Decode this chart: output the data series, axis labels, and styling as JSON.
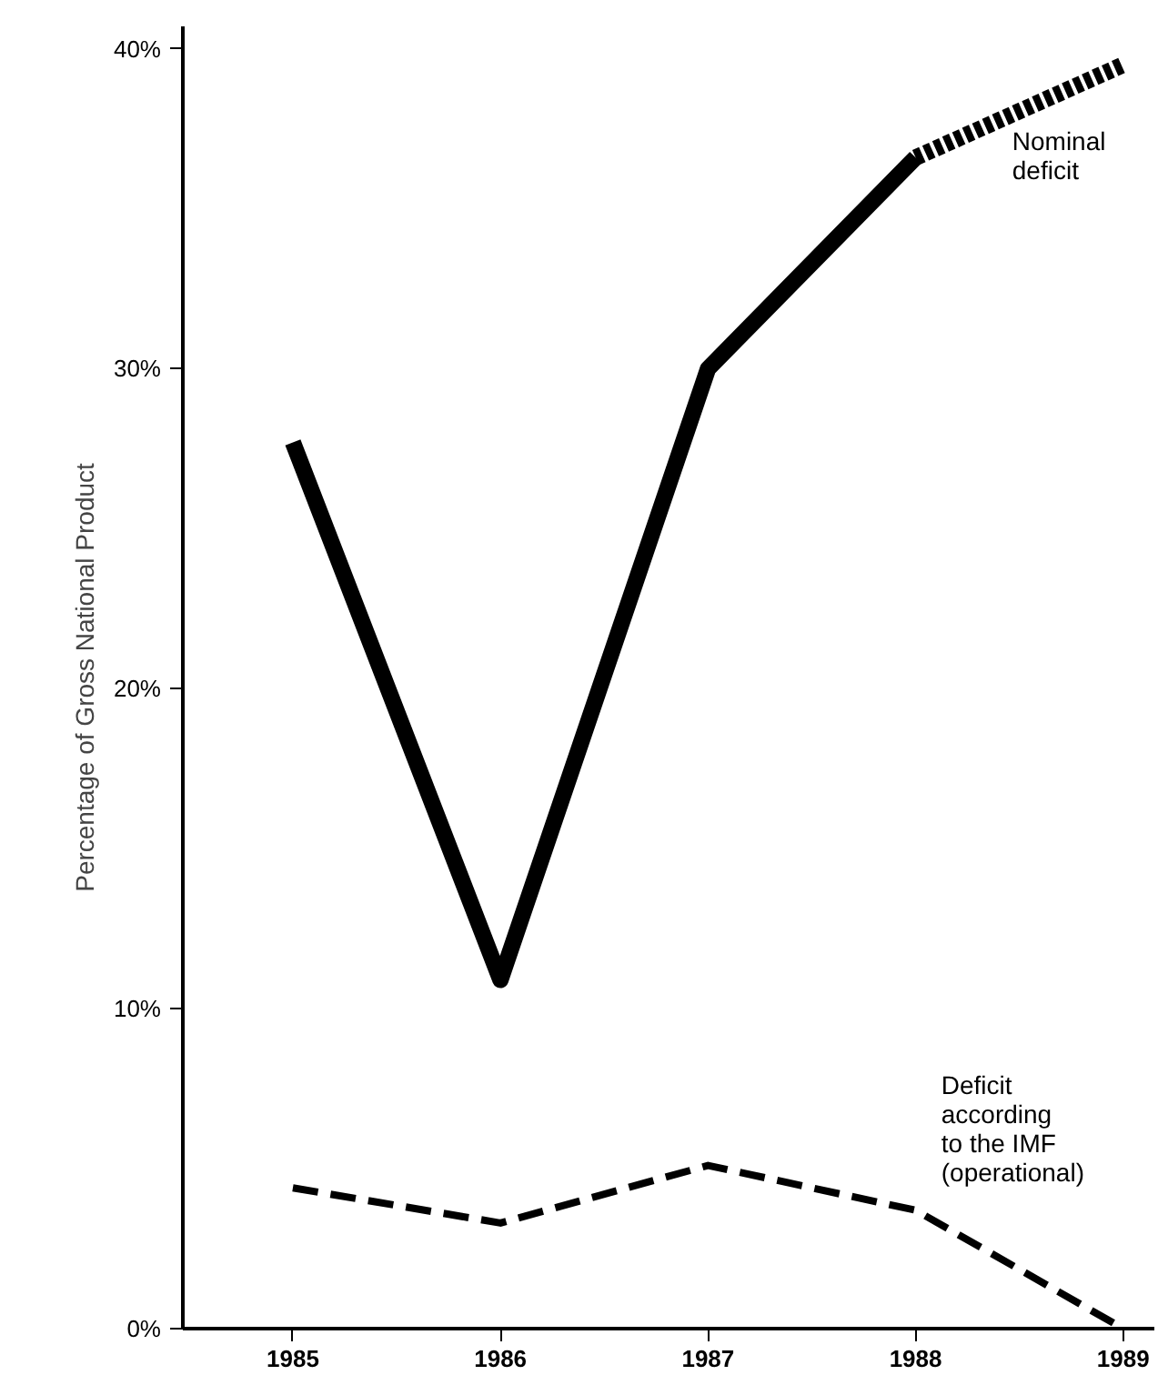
{
  "chart_data": {
    "type": "line",
    "ylabel": "Percentage of Gross National Product",
    "xlim": [
      1984.47,
      1989.15
    ],
    "ylim": [
      0,
      40.7
    ],
    "xticks": [
      1985,
      1986,
      1987,
      1988,
      1989
    ],
    "yticks": [
      {
        "value": 0,
        "label": "0%"
      },
      {
        "value": 10,
        "label": "10%"
      },
      {
        "value": 20,
        "label": "20%"
      },
      {
        "value": 30,
        "label": "30%"
      },
      {
        "value": 40,
        "label": "40%"
      }
    ],
    "grid": false,
    "marker": "none",
    "series": [
      {
        "color": "#000000",
        "x": [
          1985,
          1986,
          1987,
          1988
        ],
        "values": [
          27.7,
          10.9,
          30,
          36.6
        ],
        "line_style": "solid"
      },
      {
        "name": "Nominal\ndeficit",
        "color": "#000000",
        "x": [
          1988,
          1989
        ],
        "values": [
          36.6,
          39.5
        ],
        "line_style": "dotted"
      },
      {
        "name": "Deficit\naccording\nto the IMF\n(operational)",
        "color": "#000000",
        "x": [
          1985,
          1986,
          1987,
          1988,
          1989
        ],
        "values": [
          4.4,
          3.3,
          5.1,
          3.7,
          0
        ],
        "line_style": "dashed"
      }
    ]
  }
}
